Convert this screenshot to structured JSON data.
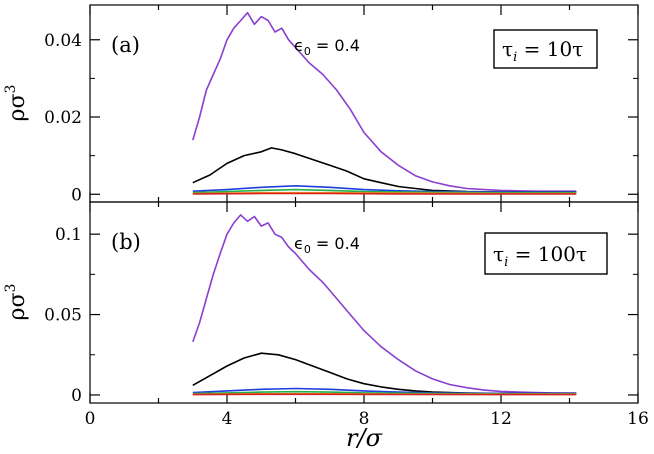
{
  "chart_data": {
    "type": "line",
    "xlabel": "r/σ",
    "x_ticks": [
      "0",
      "4",
      "8",
      "12",
      "16"
    ],
    "xlim": [
      0,
      16
    ],
    "colors": {
      "purple": "#8a3fd0",
      "black": "#000000",
      "blue": "#1f3fdc",
      "green": "#22b04a",
      "orange": "#ee8a1a",
      "red": "#d62222"
    },
    "panels": [
      {
        "panel_label": "(a)",
        "annotation": "ϵ0 = 0.4",
        "ann_main": "ϵ",
        "ann_sub": "0",
        "ann_rest": " = 0.4",
        "box_label": "τi = 10τ",
        "box_tau": "τ",
        "box_sub": "i",
        "box_rest": " = 10τ",
        "ylabel": "ρσ3",
        "ylabel_main": "ρσ",
        "ylabel_sup": "3",
        "ylim": [
          -0.002,
          0.049
        ],
        "y_ticks": [
          0,
          0.02,
          0.04
        ],
        "y_tick_labels": [
          "0",
          "0.02",
          "0.04"
        ],
        "series": [
          {
            "name": "purple",
            "x": [
              3.0,
              3.2,
              3.4,
              3.6,
              3.8,
              4.0,
              4.2,
              4.4,
              4.6,
              4.8,
              5.0,
              5.2,
              5.4,
              5.6,
              5.8,
              6.0,
              6.4,
              6.8,
              7.2,
              7.6,
              8.0,
              8.5,
              9.0,
              9.5,
              10.0,
              10.5,
              11.0,
              11.5,
              12.0,
              12.5,
              13.0,
              13.5,
              14.2
            ],
            "y": [
              0.014,
              0.02,
              0.027,
              0.031,
              0.035,
              0.04,
              0.043,
              0.045,
              0.047,
              0.044,
              0.046,
              0.045,
              0.042,
              0.043,
              0.04,
              0.038,
              0.034,
              0.031,
              0.027,
              0.022,
              0.016,
              0.011,
              0.0075,
              0.0048,
              0.0032,
              0.0022,
              0.0015,
              0.0012,
              0.001,
              0.0009,
              0.0008,
              0.0008,
              0.0008
            ]
          },
          {
            "name": "black",
            "x": [
              3.0,
              3.5,
              4.0,
              4.5,
              5.0,
              5.3,
              5.6,
              6.0,
              6.5,
              7.0,
              7.5,
              8.0,
              8.5,
              9.0,
              9.5,
              10.0,
              11.0,
              12.0,
              13.0,
              14.2
            ],
            "y": [
              0.003,
              0.005,
              0.008,
              0.01,
              0.011,
              0.012,
              0.0115,
              0.0105,
              0.009,
              0.0075,
              0.006,
              0.004,
              0.003,
              0.002,
              0.0015,
              0.001,
              0.0007,
              0.0006,
              0.0006,
              0.0006
            ]
          },
          {
            "name": "blue",
            "x": [
              3.0,
              4.0,
              5.0,
              6.0,
              7.0,
              8.0,
              9.0,
              10.0,
              12.0,
              14.2
            ],
            "y": [
              0.0008,
              0.0012,
              0.0018,
              0.0022,
              0.0018,
              0.0012,
              0.0009,
              0.0007,
              0.0006,
              0.0006
            ]
          },
          {
            "name": "green",
            "x": [
              3.0,
              4.0,
              5.0,
              6.0,
              7.0,
              8.0,
              10.0,
              12.0,
              14.2
            ],
            "y": [
              0.0004,
              0.0007,
              0.001,
              0.0012,
              0.001,
              0.0007,
              0.0005,
              0.0004,
              0.0004
            ]
          },
          {
            "name": "orange",
            "x": [
              3.0,
              5.0,
              7.0,
              9.0,
              12.0,
              14.2
            ],
            "y": [
              0.0002,
              0.0004,
              0.0004,
              0.0003,
              0.0002,
              0.0002
            ]
          },
          {
            "name": "red",
            "x": [
              3.0,
              5.0,
              7.0,
              9.0,
              12.0,
              14.2
            ],
            "y": [
              0.0001,
              0.0002,
              0.0002,
              0.0001,
              0.0001,
              0.0001
            ]
          }
        ]
      },
      {
        "panel_label": "(b)",
        "annotation": "ϵ0 = 0.4",
        "ann_main": "ϵ",
        "ann_sub": "0",
        "ann_rest": " = 0.4",
        "box_label": "τi = 100τ",
        "box_tau": "τ",
        "box_sub": "i",
        "box_rest": " = 100τ",
        "ylabel": "ρσ3",
        "ylabel_main": "ρσ",
        "ylabel_sup": "3",
        "ylim": [
          -0.005,
          0.12
        ],
        "y_ticks": [
          0,
          0.05,
          0.1
        ],
        "y_tick_labels": [
          "0",
          "0.05",
          "0.1"
        ],
        "series": [
          {
            "name": "purple",
            "x": [
              3.0,
              3.2,
              3.4,
              3.6,
              3.8,
              4.0,
              4.2,
              4.4,
              4.6,
              4.8,
              5.0,
              5.2,
              5.4,
              5.6,
              5.8,
              6.0,
              6.4,
              6.8,
              7.2,
              7.6,
              8.0,
              8.5,
              9.0,
              9.5,
              10.0,
              10.5,
              11.0,
              11.5,
              12.0,
              12.5,
              13.0,
              13.5,
              14.2
            ],
            "y": [
              0.033,
              0.045,
              0.06,
              0.075,
              0.088,
              0.1,
              0.107,
              0.112,
              0.108,
              0.111,
              0.105,
              0.107,
              0.1,
              0.098,
              0.092,
              0.088,
              0.078,
              0.07,
              0.06,
              0.05,
              0.04,
              0.03,
              0.022,
              0.015,
              0.01,
              0.0065,
              0.0045,
              0.003,
              0.0022,
              0.0018,
              0.0015,
              0.0013,
              0.0012
            ]
          },
          {
            "name": "black",
            "x": [
              3.0,
              3.5,
              4.0,
              4.5,
              5.0,
              5.5,
              6.0,
              6.5,
              7.0,
              7.5,
              8.0,
              8.5,
              9.0,
              9.5,
              10.0,
              11.0,
              12.0,
              13.0,
              14.2
            ],
            "y": [
              0.006,
              0.012,
              0.018,
              0.023,
              0.026,
              0.025,
              0.022,
              0.018,
              0.014,
              0.01,
              0.007,
              0.005,
              0.0035,
              0.0025,
              0.0018,
              0.0012,
              0.001,
              0.001,
              0.001
            ]
          },
          {
            "name": "blue",
            "x": [
              3.0,
              4.0,
              5.0,
              6.0,
              7.0,
              8.0,
              9.0,
              10.0,
              12.0,
              14.2
            ],
            "y": [
              0.0015,
              0.0025,
              0.0035,
              0.004,
              0.0035,
              0.0025,
              0.0018,
              0.0013,
              0.001,
              0.001
            ]
          },
          {
            "name": "green",
            "x": [
              3.0,
              4.0,
              5.0,
              6.0,
              7.0,
              8.0,
              10.0,
              12.0,
              14.2
            ],
            "y": [
              0.0008,
              0.0013,
              0.0018,
              0.002,
              0.0018,
              0.0013,
              0.0009,
              0.0007,
              0.0007
            ]
          },
          {
            "name": "orange",
            "x": [
              3.0,
              5.0,
              7.0,
              9.0,
              12.0,
              14.2
            ],
            "y": [
              0.0004,
              0.0007,
              0.0007,
              0.0005,
              0.0004,
              0.0004
            ]
          },
          {
            "name": "red",
            "x": [
              3.0,
              5.0,
              7.0,
              9.0,
              12.0,
              14.2
            ],
            "y": [
              0.0002,
              0.0004,
              0.0004,
              0.0003,
              0.0002,
              0.0002
            ]
          }
        ]
      }
    ]
  }
}
